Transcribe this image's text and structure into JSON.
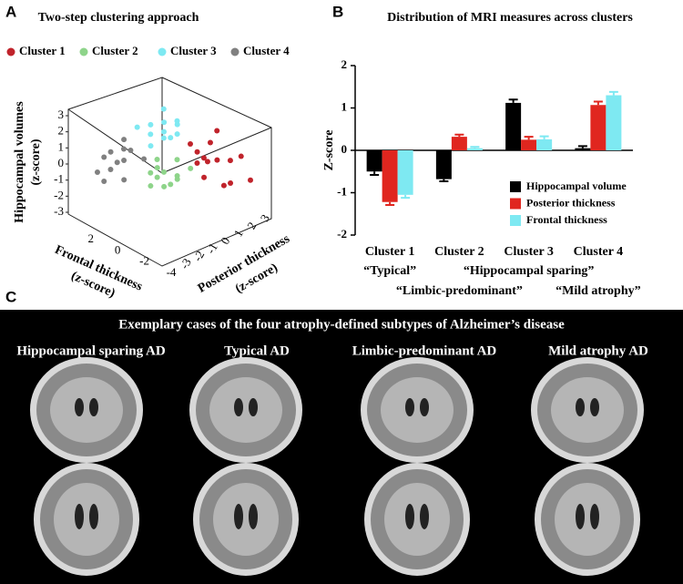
{
  "panels": {
    "a": "A",
    "b": "B",
    "c": "C"
  },
  "chart_data": [
    {
      "type": "scatter3d",
      "title": "Two-step clustering approach",
      "xlabel": [
        "Frontal thickness",
        "(z-score)"
      ],
      "ylabel": [
        "Posterior thickness",
        "(z-score)"
      ],
      "zlabel": [
        "Hippocampal volumes",
        "(z-score)"
      ],
      "xlim": [
        -4,
        3
      ],
      "xticks": [
        2,
        0,
        -2,
        -4
      ],
      "ylim": [
        -3,
        3
      ],
      "yticks": [
        -3,
        -2,
        -1,
        0,
        1,
        2,
        3
      ],
      "zlim": [
        -3,
        3
      ],
      "zticks": [
        3,
        2,
        1,
        0,
        -1,
        -2,
        -3
      ],
      "series": [
        {
          "name": "Cluster 1",
          "color": "#c0232b",
          "x": [
            -2,
            -1,
            -3,
            -2,
            -1.5,
            -2.5,
            0,
            -1,
            -3,
            -0.5,
            -2,
            -3.5,
            -1,
            -2.5
          ],
          "y": [
            2,
            2.5,
            1.5,
            3,
            1,
            2.5,
            2,
            1.5,
            2.8,
            2.8,
            1,
            3,
            3,
            0.5
          ],
          "z": [
            0,
            0.5,
            -1,
            -0.5,
            0.8,
            -1.5,
            0.3,
            -0.3,
            0.2,
            -1,
            0.6,
            -1.2,
            1,
            -0.2
          ]
        },
        {
          "name": "Cluster 2",
          "color": "#8ed48a",
          "x": [
            0,
            0.5,
            -0.5,
            0,
            1,
            -1,
            0.5,
            0,
            -0.5,
            1,
            0,
            -1
          ],
          "y": [
            0,
            0,
            0.5,
            -0.5,
            0.5,
            0,
            -0.5,
            1,
            -0.5,
            0,
            0.5,
            1
          ],
          "z": [
            -0.5,
            -1,
            -0.8,
            0,
            -0.3,
            -0.6,
            -1.3,
            -0.2,
            -1,
            -0.9,
            -1.5,
            -0.4
          ]
        },
        {
          "name": "Cluster 3",
          "color": "#7ee9f2",
          "x": [
            0,
            0.5,
            -0.5,
            1,
            0,
            -1,
            0.5,
            0,
            1,
            -0.5,
            0,
            1.5
          ],
          "y": [
            0,
            -0.5,
            0.5,
            0,
            1,
            0,
            0.5,
            -1,
            1,
            -0.5,
            0.5,
            -0.5
          ],
          "z": [
            2,
            2.5,
            1.8,
            1.5,
            2.2,
            2.8,
            1.2,
            1.6,
            2.6,
            3,
            1.4,
            2
          ]
        },
        {
          "name": "Cluster 4",
          "color": "#808080",
          "x": [
            2,
            2.5,
            2.5,
            1.5,
            2.5,
            2,
            2.5,
            1.5,
            2.5,
            2,
            2.5,
            1
          ],
          "y": [
            -1,
            -2,
            -1.5,
            -1,
            -1,
            -2,
            -0.5,
            -1.5,
            -2.5,
            -1,
            -2,
            -0.5
          ],
          "z": [
            0,
            0.5,
            -0.5,
            0.8,
            -0.3,
            1,
            0.3,
            -0.8,
            -0.2,
            1.3,
            -1,
            0.2
          ]
        }
      ]
    },
    {
      "type": "bar",
      "title": "Distribution of MRI measures across clusters",
      "ylabel": "Z-score",
      "categories": [
        "Cluster 1",
        "Cluster 2",
        "Cluster 3",
        "Cluster 4"
      ],
      "category_notes": [
        "“Typical”",
        "“Limbic-predominant”",
        "“Hippocampal sparing”",
        "“Mild atrophy”"
      ],
      "ylim": [
        -2,
        2
      ],
      "yticks": [
        -2,
        -1,
        0,
        1,
        2
      ],
      "series": [
        {
          "name": "Hippocampal volume",
          "color": "#000000",
          "values": [
            -0.5,
            -0.68,
            1.12,
            0.05
          ],
          "errors": [
            0.08,
            0.05,
            0.08,
            0.05
          ]
        },
        {
          "name": "Posterior thickness",
          "color": "#e0261f",
          "values": [
            -1.22,
            0.32,
            0.25,
            1.07
          ],
          "errors": [
            0.07,
            0.05,
            0.07,
            0.08
          ]
        },
        {
          "name": "Frontal thickness",
          "color": "#7ee9f2",
          "values": [
            -1.05,
            0.05,
            0.26,
            1.3
          ],
          "errors": [
            0.07,
            0.03,
            0.07,
            0.08
          ]
        }
      ]
    }
  ],
  "panel_c": {
    "title": "Exemplary cases of the four atrophy-defined subtypes of Alzheimer’s disease",
    "subtypes": [
      "Hippocampal sparing AD",
      "Typical AD",
      "Limbic-predominant AD",
      "Mild atrophy AD"
    ]
  }
}
